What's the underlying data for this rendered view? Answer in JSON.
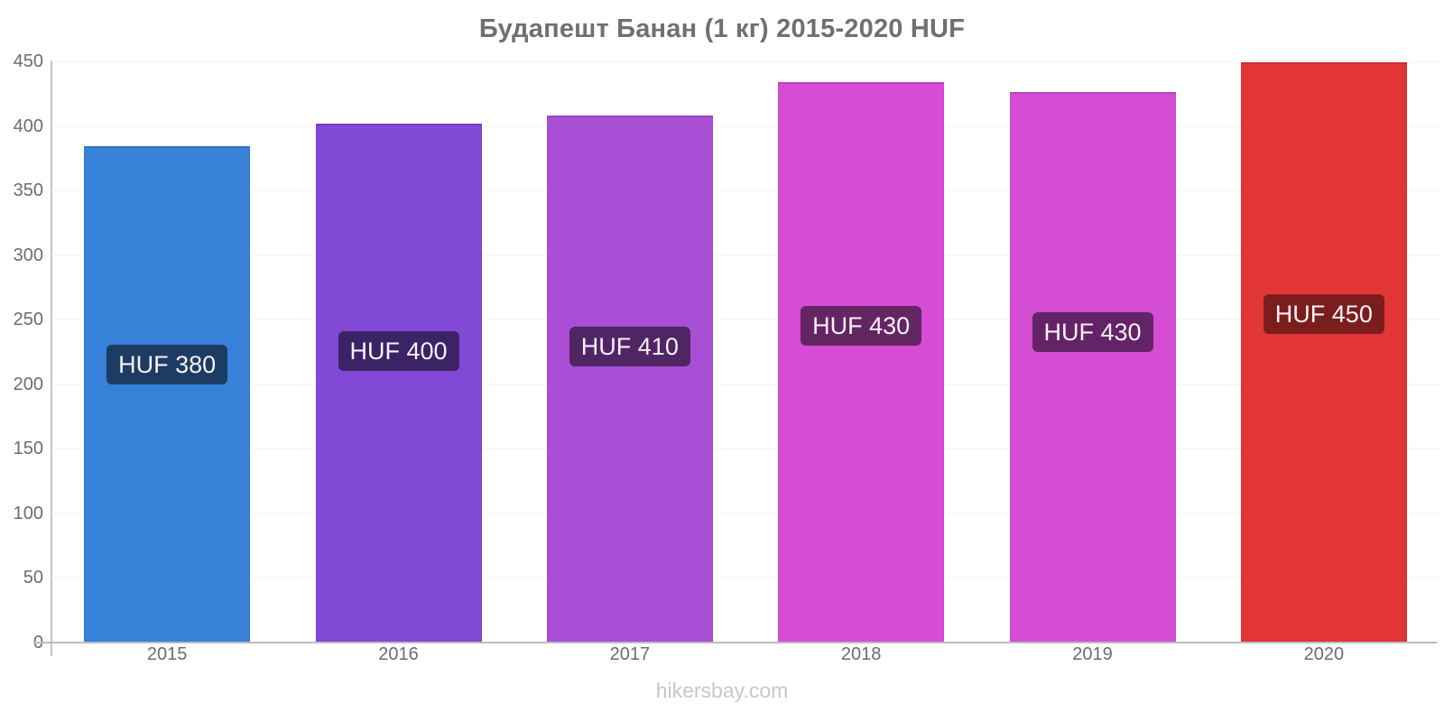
{
  "chart_data": {
    "type": "bar",
    "title": "Будапешт Банан (1 кг) 2015-2020 HUF",
    "categories": [
      "2015",
      "2016",
      "2017",
      "2018",
      "2019",
      "2020"
    ],
    "values": [
      380,
      400,
      410,
      430,
      430,
      450
    ],
    "bar_heights_huf": [
      384,
      402,
      408,
      434,
      426,
      449
    ],
    "data_labels": [
      "HUF 380",
      "HUF 400",
      "HUF 410",
      "HUF 430",
      "HUF 430",
      "HUF 450"
    ],
    "bar_colors": [
      "#3781d9",
      "#8149d6",
      "#a94fd6",
      "#d74cd4",
      "#d54dd3",
      "#e23636"
    ],
    "label_bg_colors": [
      "#1d3c63",
      "#3c2366",
      "#4f2564",
      "#642563",
      "#642366",
      "#7c1d1d"
    ],
    "xlabel": "",
    "ylabel": "",
    "ylim": [
      0,
      450
    ],
    "y_ticks": [
      0,
      50,
      100,
      150,
      200,
      250,
      300,
      350,
      400,
      450
    ],
    "grid": true,
    "legend": "none",
    "currency": "HUF"
  },
  "footer": {
    "text": "hikersbay.com"
  }
}
